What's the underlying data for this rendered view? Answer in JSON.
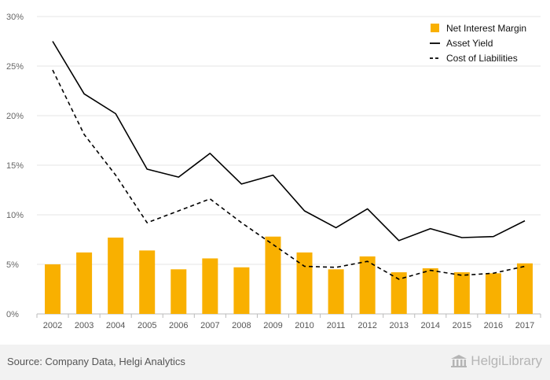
{
  "chart_data": {
    "type": "bar+line",
    "categories": [
      "2002",
      "2003",
      "2004",
      "2005",
      "2006",
      "2007",
      "2008",
      "2009",
      "2010",
      "2011",
      "2012",
      "2013",
      "2014",
      "2015",
      "2016",
      "2017"
    ],
    "series": [
      {
        "name": "Net Interest Margin",
        "type": "bar",
        "values": [
          5.0,
          6.2,
          7.7,
          6.4,
          4.5,
          5.6,
          4.7,
          7.8,
          6.2,
          4.5,
          5.8,
          4.2,
          4.6,
          4.2,
          4.1,
          5.1
        ]
      },
      {
        "name": "Asset Yield",
        "type": "line",
        "dash": "solid",
        "values": [
          27.5,
          22.2,
          20.2,
          14.6,
          13.8,
          16.2,
          13.1,
          14.0,
          10.4,
          8.7,
          10.6,
          7.4,
          8.6,
          7.7,
          7.8,
          9.4
        ]
      },
      {
        "name": "Cost of Liabilities",
        "type": "line",
        "dash": "dashed",
        "values": [
          24.6,
          18.1,
          14.0,
          9.2,
          10.4,
          11.6,
          9.2,
          7.0,
          4.8,
          4.7,
          5.3,
          3.5,
          4.4,
          3.9,
          4.1,
          4.8
        ]
      }
    ],
    "yticks": [
      "0%",
      "5%",
      "10%",
      "15%",
      "20%",
      "25%",
      "30%"
    ],
    "ylim": [
      0,
      30
    ],
    "grid": true,
    "legend": "top-right",
    "colors": {
      "bar": "#f9b000",
      "line": "#000000",
      "grid": "#e6e6e6",
      "axis": "#bbbbbb"
    }
  },
  "footer": {
    "source": "Source: Company Data, Helgi Analytics",
    "brand": "HelgiLibrary",
    "brand_icon": "library-building-icon"
  }
}
